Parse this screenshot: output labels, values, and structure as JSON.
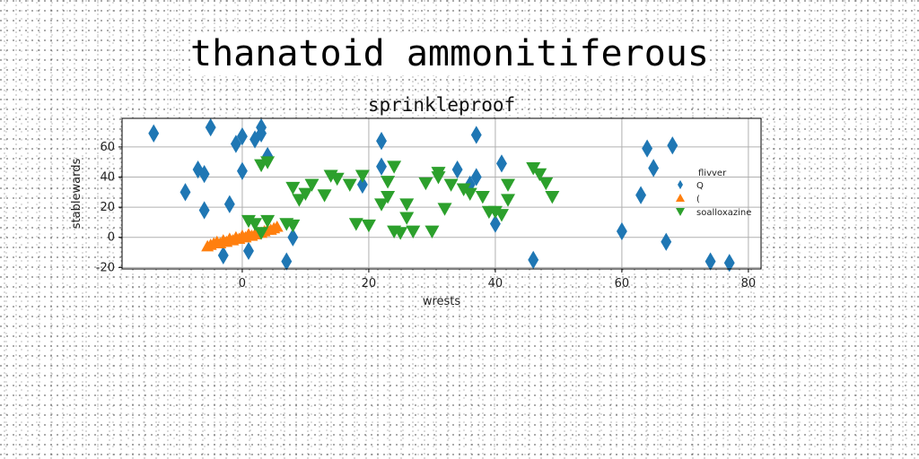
{
  "figure_title": "thanatoid ammonitiferous",
  "chart_data": {
    "type": "scatter",
    "title": "sprinkleproof",
    "xlabel": "wrests",
    "ylabel": "stablewards",
    "xlim": [
      -19,
      82
    ],
    "ylim": [
      -21,
      79
    ],
    "xticks": [
      0,
      20,
      40,
      60,
      80
    ],
    "yticks": [
      -20,
      0,
      20,
      40,
      60
    ],
    "grid": true,
    "legend": {
      "title": "flivver",
      "placement": "right",
      "entries": [
        "Q",
        "(",
        "soalloxazine"
      ]
    },
    "series": [
      {
        "name": "Q",
        "marker": "diamond",
        "color": "#1f77b4",
        "points": [
          [
            -14,
            69
          ],
          [
            -9,
            30
          ],
          [
            -7,
            45
          ],
          [
            -6,
            42
          ],
          [
            -6,
            18
          ],
          [
            -5,
            73
          ],
          [
            -3,
            -12
          ],
          [
            -2,
            22
          ],
          [
            -1,
            62
          ],
          [
            0,
            67
          ],
          [
            0,
            44
          ],
          [
            1,
            -9
          ],
          [
            2,
            65
          ],
          [
            3,
            69
          ],
          [
            3,
            73
          ],
          [
            4,
            54
          ],
          [
            7,
            -16
          ],
          [
            8,
            0
          ],
          [
            19,
            35
          ],
          [
            22,
            47
          ],
          [
            22,
            64
          ],
          [
            34,
            45
          ],
          [
            36,
            35
          ],
          [
            37,
            40
          ],
          [
            37,
            68
          ],
          [
            40,
            9
          ],
          [
            41,
            49
          ],
          [
            46,
            -15
          ],
          [
            60,
            4
          ],
          [
            63,
            28
          ],
          [
            64,
            59
          ],
          [
            65,
            46
          ],
          [
            67,
            -3
          ],
          [
            68,
            61
          ],
          [
            74,
            -16
          ],
          [
            77,
            -17
          ]
        ]
      },
      {
        "name": "(",
        "marker": "triangle-up",
        "color": "#ff7f0e",
        "points": [
          [
            -5.5,
            -6
          ],
          [
            -5,
            -5
          ],
          [
            -4.5,
            -4
          ],
          [
            -4,
            -3
          ],
          [
            -3.5,
            -4
          ],
          [
            -3,
            -2
          ],
          [
            -2.5,
            -3
          ],
          [
            -2,
            -1
          ],
          [
            -1.5,
            -2
          ],
          [
            -1,
            0
          ],
          [
            -0.5,
            -1
          ],
          [
            0,
            1
          ],
          [
            0.5,
            0
          ],
          [
            1,
            2
          ],
          [
            1.5,
            1
          ],
          [
            2,
            2
          ],
          [
            2.5,
            3
          ],
          [
            3,
            3
          ],
          [
            3.5,
            4
          ],
          [
            4,
            5
          ],
          [
            4.5,
            5
          ],
          [
            5,
            6
          ],
          [
            5.5,
            7
          ]
        ]
      },
      {
        "name": "soalloxazine",
        "marker": "triangle-down",
        "color": "#2ca02c",
        "points": [
          [
            1,
            11
          ],
          [
            2,
            9
          ],
          [
            3,
            3
          ],
          [
            3,
            48
          ],
          [
            4,
            50
          ],
          [
            4,
            11
          ],
          [
            7,
            9
          ],
          [
            8,
            33
          ],
          [
            8,
            8
          ],
          [
            9,
            25
          ],
          [
            10,
            29
          ],
          [
            11,
            35
          ],
          [
            13,
            28
          ],
          [
            14,
            41
          ],
          [
            15,
            39
          ],
          [
            17,
            35
          ],
          [
            18,
            9
          ],
          [
            19,
            41
          ],
          [
            20,
            8
          ],
          [
            22,
            22
          ],
          [
            23,
            27
          ],
          [
            23,
            37
          ],
          [
            24,
            4
          ],
          [
            24,
            47
          ],
          [
            25,
            3
          ],
          [
            26,
            22
          ],
          [
            26,
            13
          ],
          [
            27,
            4
          ],
          [
            29,
            36
          ],
          [
            30,
            4
          ],
          [
            31,
            43
          ],
          [
            31,
            40
          ],
          [
            32,
            19
          ],
          [
            33,
            35
          ],
          [
            35,
            32
          ],
          [
            36,
            29
          ],
          [
            38,
            27
          ],
          [
            39,
            17
          ],
          [
            40,
            17
          ],
          [
            41,
            15
          ],
          [
            42,
            25
          ],
          [
            42,
            35
          ],
          [
            46,
            46
          ],
          [
            47,
            42
          ],
          [
            48,
            36
          ],
          [
            49,
            27
          ]
        ]
      }
    ]
  }
}
